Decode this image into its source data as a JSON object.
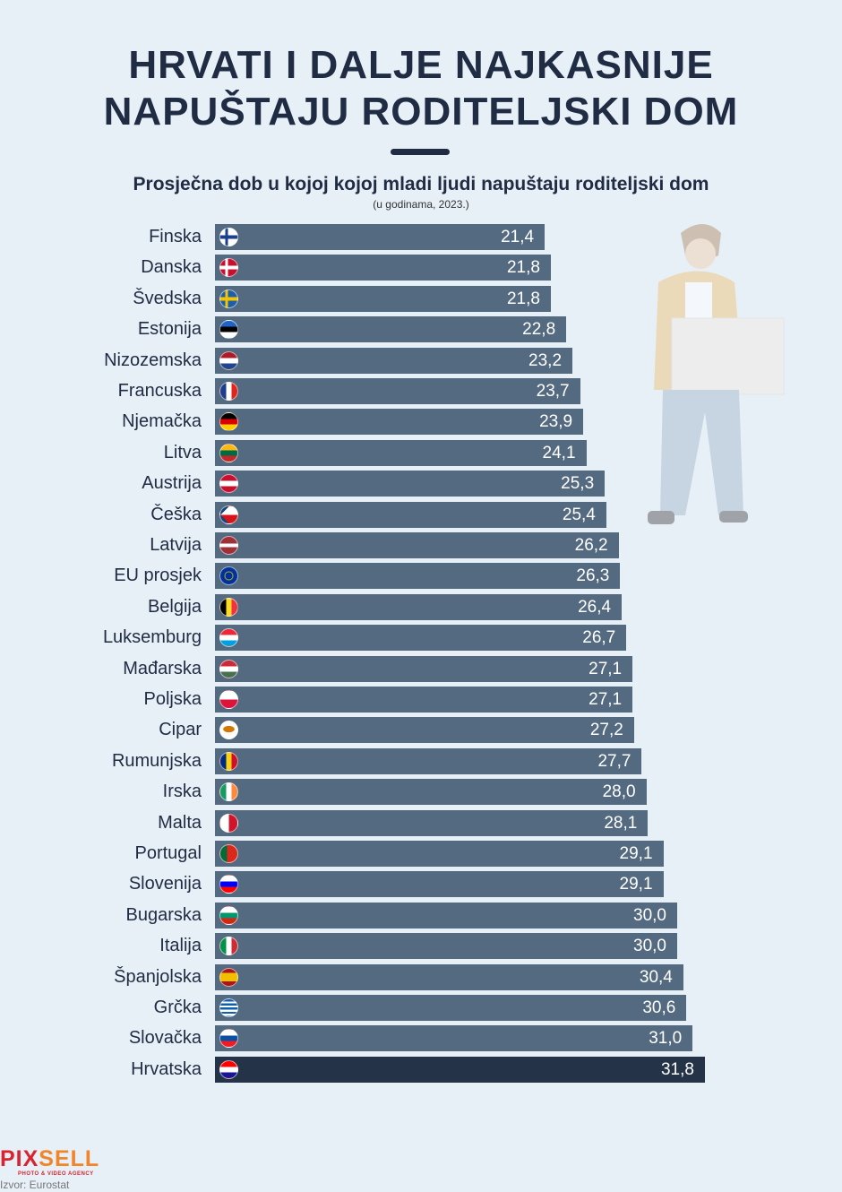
{
  "title_lines": [
    "HRVATI I DALJE NAJKASNIJE",
    "NAPUŠTAJU RODITELJSKI DOM"
  ],
  "subtitle": "Prosječna dob u kojoj kojoj mladi ljudi napuštaju roditeljski dom",
  "note": "(u godinama, 2023.)",
  "logo": {
    "part1": "PIX",
    "part2": "SELL",
    "tagline": "PHOTO & VIDEO AGENCY"
  },
  "source": "Izvor: Eurostat",
  "colors": {
    "bar": "#546a80",
    "highlight": "#253349",
    "background": "#e7eff7",
    "title": "#1f2c43"
  },
  "chart_data": {
    "type": "bar",
    "orientation": "horizontal",
    "categories": [
      "Finska",
      "Danska",
      "Švedska",
      "Estonija",
      "Nizozemska",
      "Francuska",
      "Njemačka",
      "Litva",
      "Austrija",
      "Češka",
      "Latvija",
      "EU prosjek",
      "Belgija",
      "Luksemburg",
      "Mađarska",
      "Poljska",
      "Cipar",
      "Rumunjska",
      "Irska",
      "Malta",
      "Portugal",
      "Slovenija",
      "Bugarska",
      "Italija",
      "Španjolska",
      "Grčka",
      "Slovačka",
      "Hrvatska"
    ],
    "value_labels": [
      "21,4",
      "21,8",
      "21,8",
      "22,8",
      "23,2",
      "23,7",
      "23,9",
      "24,1",
      "25,3",
      "25,4",
      "26,2",
      "26,3",
      "26,4",
      "26,7",
      "27,1",
      "27,1",
      "27,2",
      "27,7",
      "28,0",
      "28,1",
      "29,1",
      "29,1",
      "30,0",
      "30,0",
      "30,4",
      "30,6",
      "31,0",
      "31,8"
    ],
    "values": [
      21.4,
      21.8,
      21.8,
      22.8,
      23.2,
      23.7,
      23.9,
      24.1,
      25.3,
      25.4,
      26.2,
      26.3,
      26.4,
      26.7,
      27.1,
      27.1,
      27.2,
      27.7,
      28.0,
      28.1,
      29.1,
      29.1,
      30.0,
      30.0,
      30.4,
      30.6,
      31.0,
      31.8
    ],
    "flags": [
      "fi",
      "dk",
      "se",
      "ee",
      "nl",
      "fr",
      "de",
      "lt",
      "at",
      "cz",
      "lv",
      "eu",
      "be",
      "lu",
      "hu",
      "pl",
      "cy",
      "ro",
      "ie",
      "mt",
      "pt",
      "si",
      "bg",
      "it",
      "es",
      "gr",
      "sk",
      "hr"
    ],
    "highlight": "Hrvatska",
    "xlim": [
      0,
      31.8
    ],
    "grid": false
  }
}
